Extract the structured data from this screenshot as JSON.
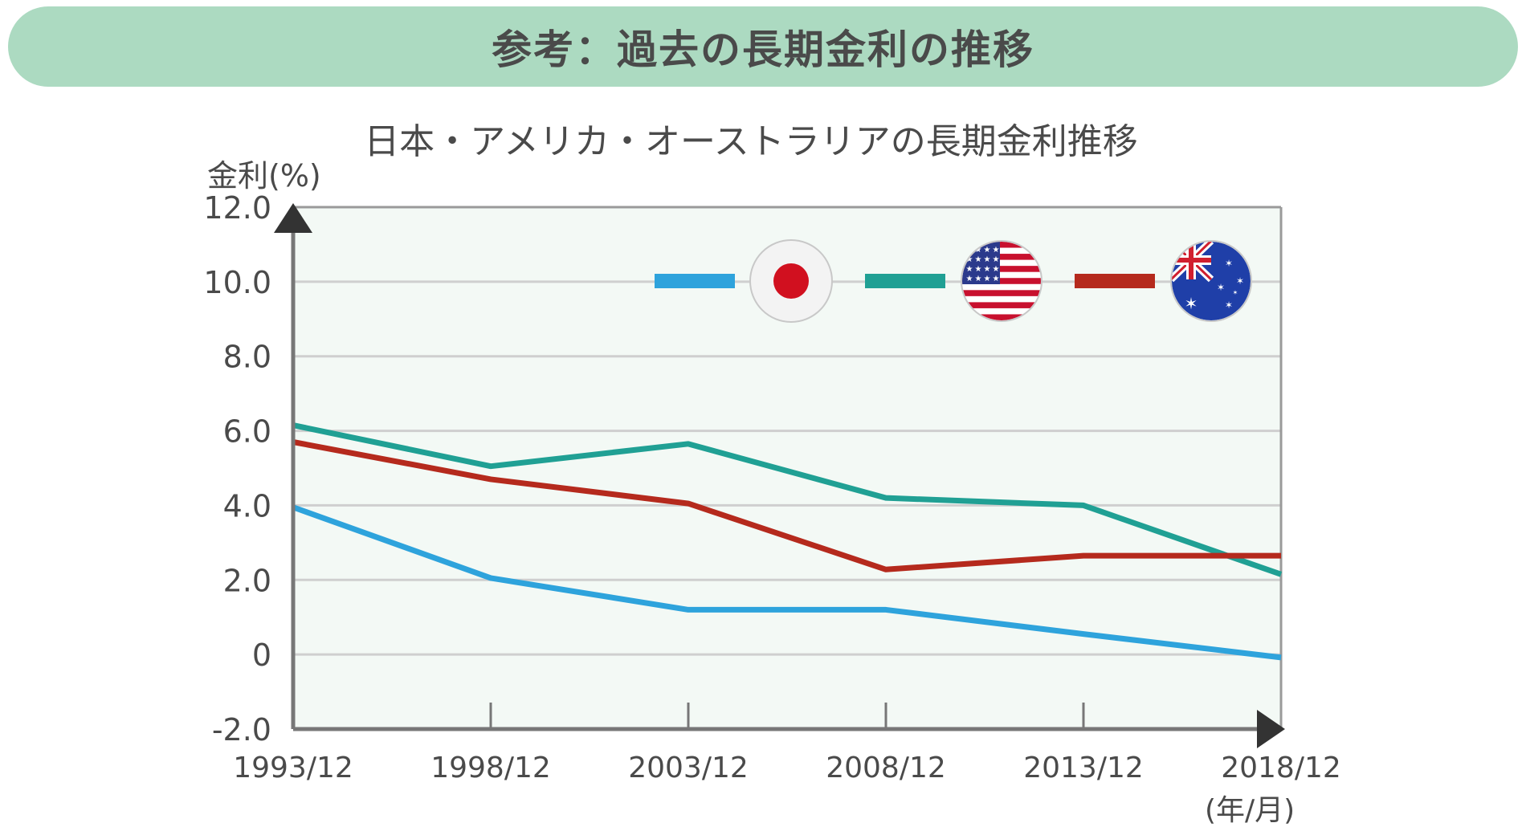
{
  "header": {
    "title": "参考：過去の長期金利の推移"
  },
  "chart_data": {
    "type": "line",
    "title": "日本・アメリカ・オーストラリアの長期金利推移",
    "ylabel": "金利(%)",
    "xlabel": "(年/月)",
    "categories": [
      "1993/12",
      "1998/12",
      "2003/12",
      "2008/12",
      "2013/12",
      "2018/12"
    ],
    "ylim": [
      -2.0,
      12.0
    ],
    "yticks": [
      12.0,
      10.0,
      8.0,
      6.0,
      4.0,
      2.0,
      0,
      -2.0
    ],
    "ytick_labels": [
      "12.0",
      "10.0",
      "8.0",
      "6.0",
      "4.0",
      "2.0",
      "0",
      "-2.0"
    ],
    "grid": true,
    "legend_position": "top-right",
    "series": [
      {
        "key": "japan",
        "color": "#2ea3dc",
        "icon": "japan-flag-icon",
        "values": [
          3.95,
          2.05,
          1.2,
          1.2,
          0.55,
          -0.08
        ]
      },
      {
        "key": "usa",
        "color": "#20a094",
        "icon": "usa-flag-icon",
        "values": [
          6.15,
          5.05,
          5.65,
          4.2,
          4.0,
          2.15
        ]
      },
      {
        "key": "australia",
        "color": "#b52a1d",
        "icon": "australia-flag-icon",
        "values": [
          5.7,
          4.7,
          4.05,
          2.28,
          2.65,
          2.65
        ]
      }
    ]
  },
  "colors": {
    "banner": "#acdac1",
    "plot_background": "#f3f9f5",
    "grid": "#cfcfcf",
    "axis": "#777777"
  }
}
